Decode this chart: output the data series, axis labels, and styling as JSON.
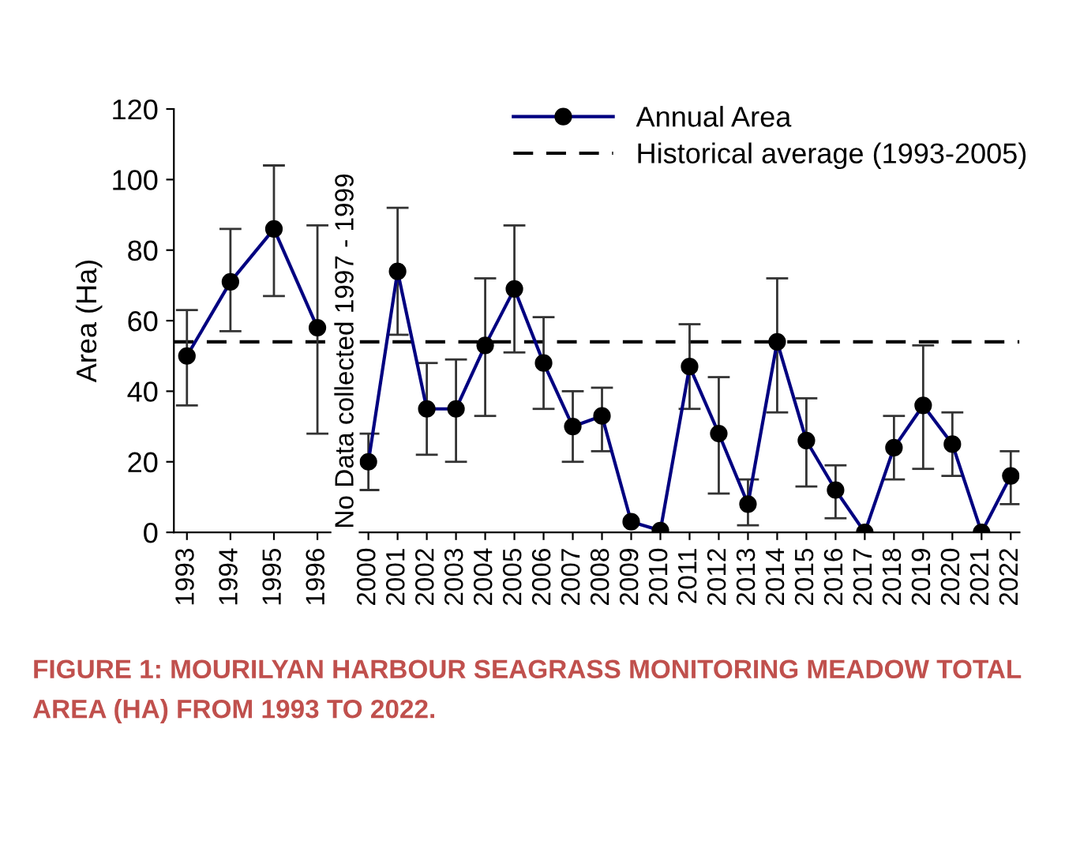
{
  "chart_data": [
    {
      "type": "line",
      "ylabel": "Area (Ha)",
      "categories": [
        "1993",
        "1994",
        "1995",
        "1996"
      ],
      "series": [
        {
          "name": "Annual Area",
          "color": "#000080",
          "values": [
            50,
            71,
            86,
            58
          ],
          "errors": [
            [
              36,
              63
            ],
            [
              57,
              86
            ],
            [
              67,
              104
            ],
            [
              28,
              87
            ]
          ]
        }
      ],
      "ylim": [
        0,
        120
      ],
      "yticks": [
        0,
        20,
        40,
        60,
        80,
        100,
        120
      ],
      "marker": "circle",
      "line_style": "solid",
      "grid": false,
      "legend": "top right",
      "ref_lines": [
        {
          "axis": "y",
          "value": 54,
          "label": "Historical average (1993-2005)",
          "color": "#000000",
          "line_style": "dashed"
        }
      ],
      "annotations": [
        "FIGURE 1: MOURILYAN HARBOUR SEAGRASS MONITORING MEADOW TOTAL AREA (HA) FROM 1993 TO 2022."
      ]
    },
    {
      "type": "line",
      "categories": [
        "2000",
        "2001",
        "2002",
        "2003",
        "2004",
        "2005",
        "2006",
        "2007",
        "2008",
        "2009",
        "2010",
        "2011",
        "2012",
        "2013",
        "2014",
        "2015",
        "2016",
        "2017",
        "2018",
        "2019",
        "2020",
        "2021",
        "2022"
      ],
      "series": [
        {
          "color": "#000080",
          "values": [
            20,
            74,
            35,
            35,
            53,
            69,
            48,
            30,
            33,
            3,
            0.5,
            47,
            28,
            8,
            54,
            26,
            12,
            0,
            24,
            36,
            25,
            0,
            16
          ],
          "errors": [
            [
              12,
              28
            ],
            [
              56,
              92
            ],
            [
              22,
              48
            ],
            [
              20,
              49
            ],
            [
              33,
              72
            ],
            [
              51,
              87
            ],
            [
              35,
              61
            ],
            [
              20,
              40
            ],
            [
              23,
              41
            ],
            null,
            null,
            [
              35,
              59
            ],
            [
              11,
              44
            ],
            [
              2,
              15
            ],
            [
              34,
              72
            ],
            [
              13,
              38
            ],
            [
              4,
              19
            ],
            null,
            [
              15,
              33
            ],
            [
              18,
              53
            ],
            [
              16,
              34
            ],
            null,
            [
              8,
              23
            ]
          ]
        }
      ],
      "ylim": [
        0,
        120
      ],
      "yticks": [
        0,
        20,
        40,
        60,
        80,
        100,
        120
      ],
      "marker": "circle",
      "line_style": "solid",
      "grid": false,
      "tick_labels": "x",
      "ref_lines": [
        {
          "axis": "y",
          "value": 54,
          "color": "#000000",
          "line_style": "dashed"
        }
      ],
      "annotations": [
        "No Data collected 1997 - 1999"
      ]
    }
  ]
}
